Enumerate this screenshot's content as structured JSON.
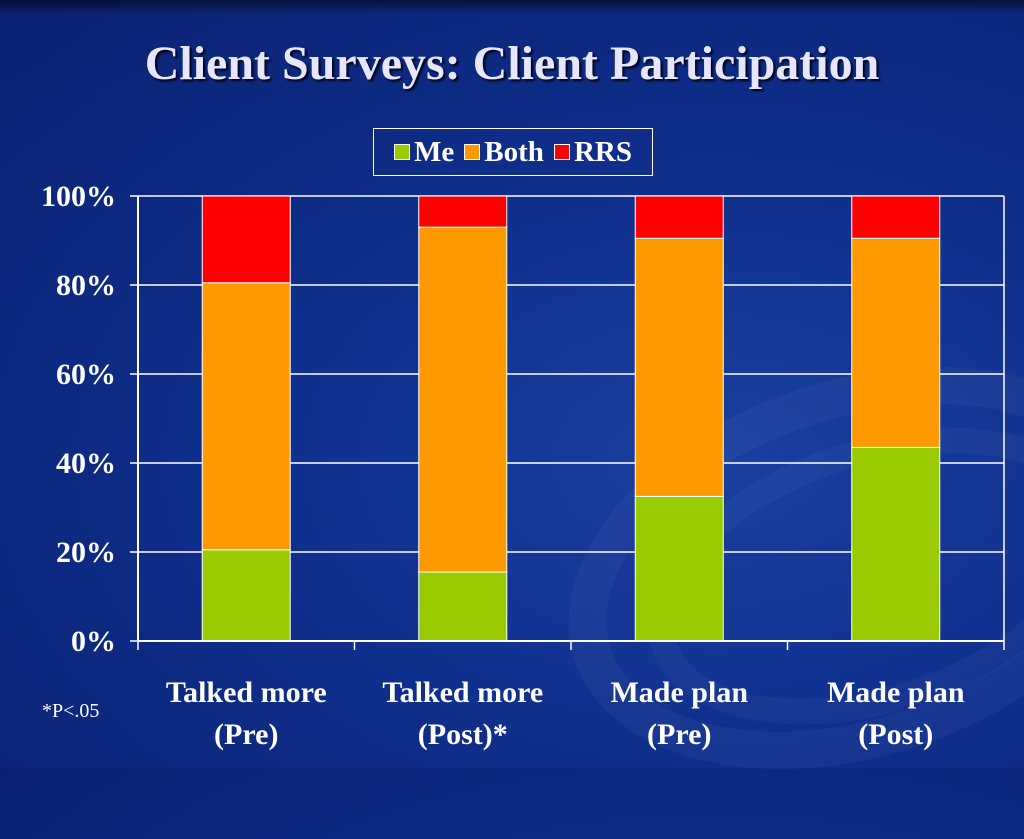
{
  "slide": {
    "title": "Client Surveys:  Client Participation",
    "footnote": "*P<.05"
  },
  "colors": {
    "Me": "#99cc00",
    "Both": "#ff9900",
    "RRS": "#ff0000",
    "grid": "#ffffff",
    "text": "#ffffff"
  },
  "chart_data": {
    "type": "bar",
    "stacked": true,
    "categories": [
      [
        "Talked more",
        "(Pre)"
      ],
      [
        "Talked more",
        "(Post)*"
      ],
      [
        "Made plan",
        "(Pre)"
      ],
      [
        "Made plan",
        "(Post)"
      ]
    ],
    "series": [
      {
        "name": "Me",
        "values": [
          20.5,
          15.5,
          32.5,
          43.5
        ]
      },
      {
        "name": "Both",
        "values": [
          60,
          77.5,
          58,
          47
        ]
      },
      {
        "name": "RRS",
        "values": [
          19.5,
          7,
          9.5,
          9.5
        ]
      }
    ],
    "ylim": [
      0,
      100
    ],
    "yticks": [
      "0%",
      "20%",
      "40%",
      "60%",
      "80%",
      "100%"
    ],
    "ytick_values": [
      0,
      20,
      40,
      60,
      80,
      100
    ],
    "grid": true,
    "legend_position": "top-center"
  }
}
